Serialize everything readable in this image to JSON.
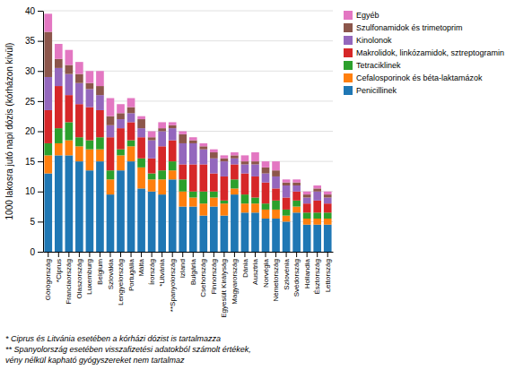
{
  "chart_data": {
    "type": "bar",
    "stacked": true,
    "categories": [
      "Görögország",
      "*Ciprus",
      "Franciaország",
      "Olaszország",
      "Luxemburg",
      "Belgium",
      "Szlovákia",
      "Lengyelország",
      "Portugália",
      "Málta",
      "Írország",
      "*Litvánia",
      "**Spanyolország",
      "Izland",
      "Bulgária",
      "Csehország",
      "Finnország",
      "Egyesült Királyság",
      "Magyarország",
      "Dánia",
      "Ausztria",
      "Norvégia",
      "Németország",
      "Szlovénia",
      "Svédország",
      "Hollandia",
      "Észtország",
      "Lettország"
    ],
    "series": [
      {
        "name": "Penicillinek",
        "values": [
          13.0,
          16.0,
          16.0,
          15.0,
          13.5,
          15.0,
          9.5,
          13.5,
          15.0,
          10.5,
          10.0,
          9.5,
          12.0,
          7.5,
          7.5,
          6.0,
          7.5,
          6.0,
          9.5,
          6.5,
          6.5,
          5.5,
          5.5,
          5.0,
          6.5,
          4.5,
          4.5,
          4.5
        ]
      },
      {
        "name": "Cefalosporinok és béta-laktamázok",
        "values": [
          3.0,
          2.0,
          2.5,
          2.5,
          3.5,
          2.0,
          2.5,
          2.5,
          2.5,
          3.5,
          2.0,
          2.5,
          1.5,
          2.5,
          1.5,
          2.0,
          1.5,
          2.0,
          1.0,
          1.5,
          1.5,
          1.5,
          1.5,
          1.0,
          1.0,
          1.0,
          1.0,
          1.0
        ]
      },
      {
        "name": "Tetraciklinek",
        "values": [
          2.0,
          2.5,
          3.0,
          1.5,
          1.5,
          2.0,
          1.5,
          1.0,
          1.0,
          1.5,
          1.0,
          1.5,
          1.5,
          2.0,
          1.0,
          2.0,
          1.0,
          0.5,
          1.5,
          1.5,
          1.0,
          1.0,
          1.5,
          1.0,
          1.0,
          1.0,
          1.0,
          1.0
        ]
      },
      {
        "name": "Makrolidok, linkózamidok, sztreptogramin",
        "values": [
          5.5,
          7.0,
          4.5,
          5.5,
          5.5,
          4.5,
          5.5,
          3.5,
          3.0,
          3.5,
          2.5,
          4.0,
          3.5,
          2.5,
          4.5,
          4.5,
          3.0,
          4.0,
          2.5,
          3.5,
          3.5,
          3.5,
          2.0,
          2.0,
          1.5,
          1.5,
          2.0,
          1.5
        ]
      },
      {
        "name": "Kinolonok",
        "values": [
          5.5,
          3.0,
          3.5,
          3.5,
          3.0,
          2.5,
          2.0,
          1.5,
          1.5,
          1.5,
          3.0,
          2.5,
          2.0,
          3.5,
          3.5,
          2.5,
          2.5,
          2.5,
          1.0,
          1.5,
          2.0,
          1.5,
          2.0,
          2.0,
          1.0,
          1.0,
          1.5,
          1.0
        ]
      },
      {
        "name": "Szulfonamidok és trimetoprim",
        "values": [
          7.5,
          1.5,
          1.5,
          1.5,
          1.0,
          1.5,
          1.5,
          1.0,
          1.0,
          1.5,
          0.5,
          0.5,
          0.5,
          1.5,
          0.5,
          0.5,
          1.0,
          0.5,
          0.5,
          0.5,
          0.5,
          1.0,
          1.0,
          0.5,
          0.5,
          0.5,
          0.5,
          0.5
        ]
      },
      {
        "name": "Egyéb",
        "values": [
          3.0,
          2.5,
          2.5,
          2.0,
          2.0,
          2.5,
          3.0,
          1.5,
          1.5,
          0.5,
          1.0,
          1.0,
          0.5,
          0.5,
          0.5,
          0.5,
          0.5,
          0.5,
          0.5,
          1.0,
          1.5,
          1.0,
          1.5,
          0.5,
          0.5,
          0.5,
          0.5,
          0.5
        ]
      }
    ],
    "y_label": "1000 lakosra jutó napi dózis (kórházon kívül)",
    "ylim": [
      0,
      40
    ],
    "yticks": [
      0,
      5,
      10,
      15,
      20,
      25,
      30,
      35,
      40
    ],
    "grid": true,
    "legend": "right",
    "annotations": [
      "* Ciprus és Litvánia esetében a kórházi dózist is tartalmazza",
      "** Spanyolország esetében visszafizetési adatokból számolt értékek,\nvény nélkül kapható gyógyszereket nem tartalmaz"
    ]
  }
}
